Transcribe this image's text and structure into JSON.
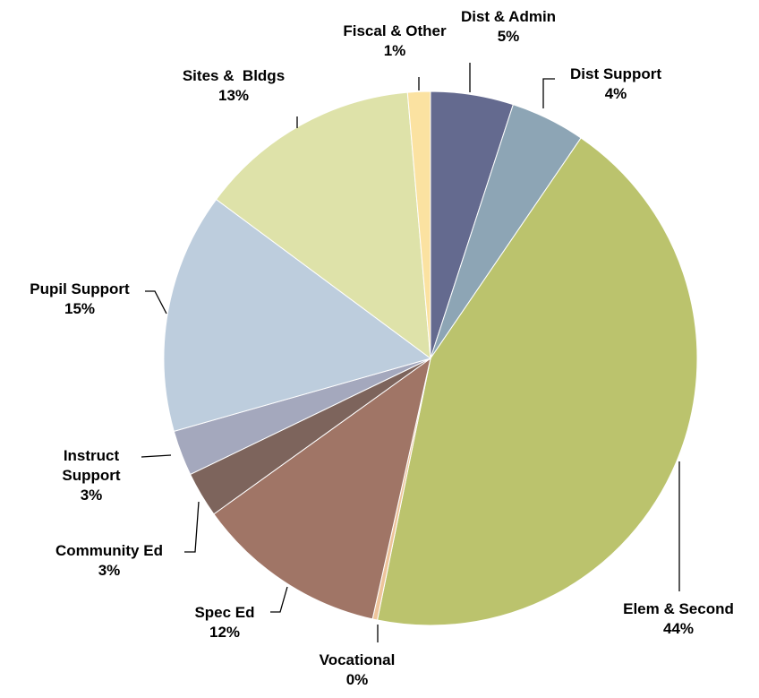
{
  "chart_data": {
    "type": "pie",
    "start_angle": "12 o'clock",
    "direction": "clockwise",
    "slices": [
      {
        "name": "Dist & Admin",
        "label": "Dist & Admin",
        "pct": "5%",
        "value": 5.1,
        "color": "#646a8f"
      },
      {
        "name": "Dist Support",
        "label": "Dist Support",
        "pct": "4%",
        "value": 4.6,
        "color": "#8da5b5"
      },
      {
        "name": "Elem & Second",
        "label": "Elem & Second",
        "pct": "44%",
        "value": 44.4,
        "color": "#bbc36d"
      },
      {
        "name": "Vocational",
        "label": "Vocational",
        "pct": "0%",
        "value": 0.3,
        "color": "#eec59c"
      },
      {
        "name": "Spec Ed",
        "label": "Spec Ed",
        "pct": "12%",
        "value": 11.8,
        "color": "#a07566"
      },
      {
        "name": "Community Ed",
        "label": "Community Ed",
        "pct": "3%",
        "value": 2.8,
        "color": "#7d645c"
      },
      {
        "name": "Instruct Support",
        "label": "Instruct\nSupport",
        "pct": "3%",
        "value": 2.8,
        "color": "#a4a8bd"
      },
      {
        "name": "Pupil Support",
        "label": "Pupil Support",
        "pct": "15%",
        "value": 14.8,
        "color": "#bdcddd"
      },
      {
        "name": "Sites & Bldgs",
        "label": "Sites &  Bldgs",
        "pct": "13%",
        "value": 13.7,
        "color": "#dee2a9"
      },
      {
        "name": "Fiscal & Other",
        "label": "Fiscal & Other",
        "pct": "1%",
        "value": 1.4,
        "color": "#fbe2a1"
      }
    ]
  }
}
